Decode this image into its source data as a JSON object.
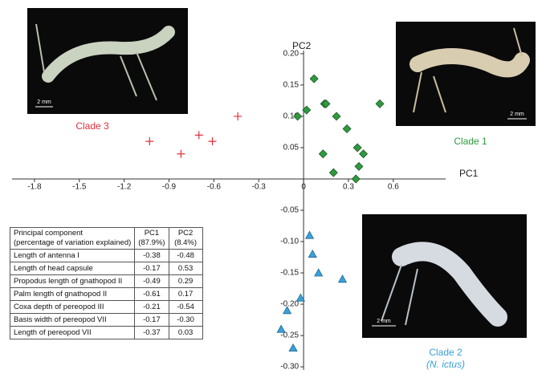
{
  "chart_data": {
    "type": "scatter",
    "x_label": "PC1",
    "y_label": "PC2",
    "xlim": [
      -1.95,
      0.95
    ],
    "ylim": [
      -0.305,
      0.205
    ],
    "xticks": [
      -1.8,
      -1.5,
      -1.2,
      -0.9,
      -0.6,
      -0.3,
      0,
      0.3,
      0.6
    ],
    "yticks": [
      {
        "value": 0.2,
        "label": "0.20"
      },
      0.15,
      {
        "value": 0.1,
        "label": "0.10"
      },
      0.05,
      -0.05,
      {
        "value": -0.1,
        "label": "-0.10"
      },
      -0.15,
      {
        "value": -0.2,
        "label": "-0.20"
      },
      -0.25,
      {
        "value": -0.3,
        "label": "-0.30"
      }
    ],
    "series": [
      {
        "name": "Clade 3",
        "color": "#e0303a",
        "marker": "plus",
        "x": [
          -0.44,
          -1.03,
          -0.7,
          -0.61,
          -0.82
        ],
        "values": [
          0.1,
          0.06,
          0.07,
          0.06,
          0.04
        ]
      },
      {
        "name": "Clade 1",
        "color": "#2e9a3e",
        "marker": "diamond",
        "x": [
          0.07,
          0.02,
          -0.04,
          0.14,
          0.15,
          0.51,
          0.22,
          0.29,
          0.36,
          0.4,
          0.13,
          0.37,
          0.2,
          0.35
        ],
        "values": [
          0.16,
          0.11,
          0.1,
          0.12,
          0.12,
          0.12,
          0.1,
          0.08,
          0.05,
          0.04,
          0.04,
          0.02,
          0.01,
          0.0
        ]
      },
      {
        "name": "Clade 2",
        "subtitle": "(N. ictus)",
        "color": "#3aa0d8",
        "marker": "triangle",
        "x": [
          0.04,
          0.06,
          0.1,
          0.26,
          -0.02,
          -0.11,
          -0.15,
          -0.07
        ],
        "values": [
          -0.09,
          -0.12,
          -0.15,
          -0.16,
          -0.19,
          -0.21,
          -0.24,
          -0.27
        ]
      }
    ]
  },
  "photos": [
    {
      "scale": "2 mm"
    },
    {
      "scale": "2 mm"
    },
    {
      "scale": "2 mm"
    }
  ],
  "table": {
    "header": [
      [
        "Principal component",
        "(percentage of variation explained)"
      ],
      [
        "PC1",
        "(87.9%)"
      ],
      [
        "PC2",
        "(8.4%)"
      ]
    ],
    "rows": [
      [
        "Length of antenna I",
        "-0.38",
        "-0.48"
      ],
      [
        "Length of head capsule",
        "-0.17",
        "0.53"
      ],
      [
        "Propodus length of gnathopod II",
        "-0.49",
        "0.29"
      ],
      [
        "Palm length of gnathopod II",
        "-0.61",
        "0.17"
      ],
      [
        "Coxa depth of pereopod III",
        "-0.21",
        "-0.54"
      ],
      [
        "Basis width of pereopod VII",
        "-0.17",
        "-0.30"
      ],
      [
        "Length of pereopod VII",
        "-0.37",
        "0.03"
      ]
    ]
  }
}
